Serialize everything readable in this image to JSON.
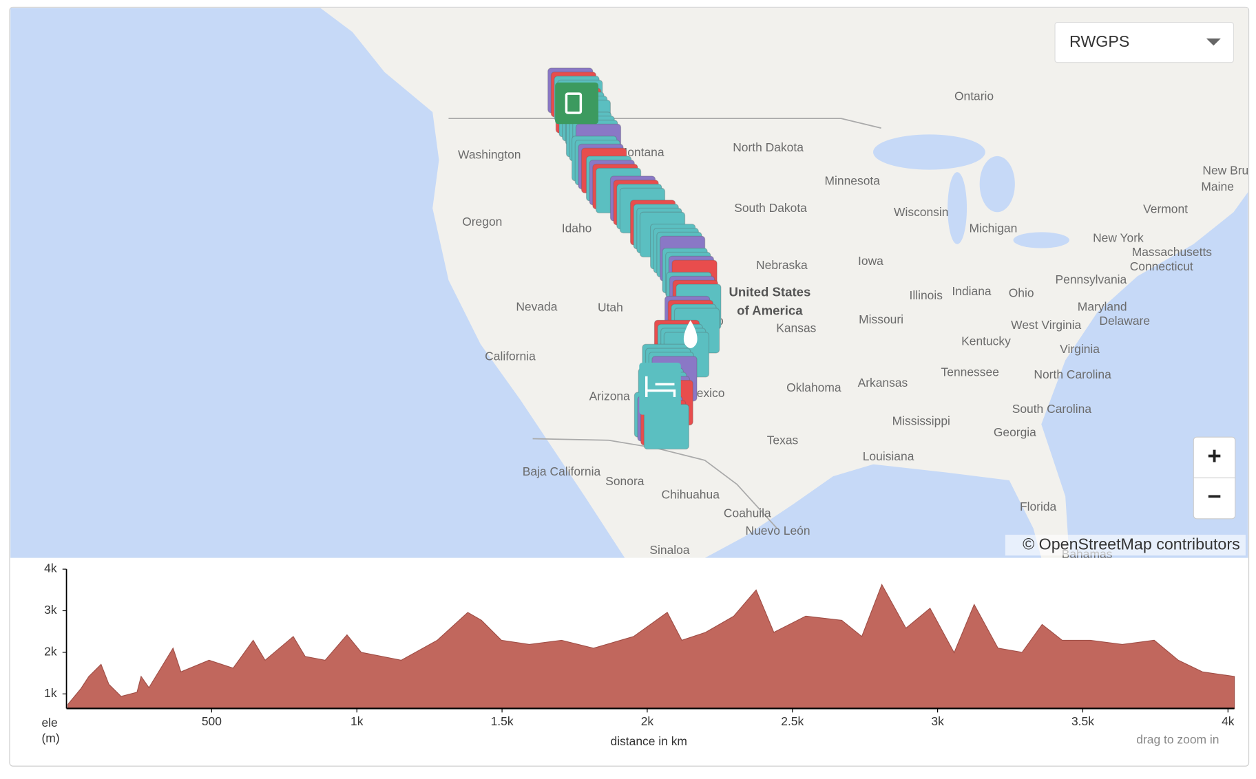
{
  "map": {
    "labels": [
      "Ontario",
      "Washington",
      "Montana",
      "North Dakota",
      "Minnesota",
      "New Bru",
      "Maine",
      "Vermont",
      "Wisconsin",
      "Michigan",
      "South Dakota",
      "Oregon",
      "Idaho",
      "Nebraska",
      "Iowa",
      "New York",
      "Massachusetts",
      "Connecticut",
      "Pennsylvania",
      "United States",
      "of America",
      "Illinois",
      "Indiana",
      "Ohio",
      "Nevada",
      "Utah",
      "do",
      "Kansas",
      "Missouri",
      "Maryland",
      "Delaware",
      "West Virginia",
      "Virginia",
      "Kentucky",
      "California",
      "Tennessee",
      "North Carolina",
      "Oklahoma",
      "Arkansas",
      "Arizona",
      "Mexico",
      "South Carolina",
      "Mississippi",
      "Georgia",
      "Texas",
      "Louisiana",
      "Baja California",
      "Sonora",
      "Chihuahua",
      "Coahuila",
      "Florida",
      "Nuevo León",
      "Sinaloa",
      "Bahamas"
    ],
    "layer_select": "RWGPS",
    "zoom_in": "+",
    "zoom_out": "−",
    "attribution": "© OpenStreetMap contributors"
  },
  "chart_data": {
    "type": "area",
    "ylabel": [
      "ele",
      "(m)"
    ],
    "xlabel": "distance in km",
    "hint": "drag to zoom in",
    "color": "#c1675d",
    "x": [
      5,
      50,
      77,
      119,
      146,
      188,
      243,
      257,
      284,
      367,
      394,
      491,
      574,
      643,
      684,
      781,
      822,
      891,
      966,
      1015,
      1153,
      1277,
      1382,
      1429,
      1498,
      1594,
      1705,
      1815,
      1953,
      2069,
      2119,
      2201,
      2298,
      2375,
      2436,
      2546,
      2670,
      2739,
      2808,
      2891,
      2974,
      3057,
      3126,
      3208,
      3291,
      3360,
      3429,
      3526,
      3636,
      3746,
      3829,
      3912,
      4022
    ],
    "values": [
      750,
      1130,
      1420,
      1710,
      1230,
      940,
      1040,
      1420,
      1150,
      2100,
      1530,
      1810,
      1620,
      2290,
      1810,
      2380,
      1900,
      1810,
      2420,
      2000,
      1810,
      2290,
      2960,
      2770,
      2290,
      2190,
      2290,
      2100,
      2380,
      2960,
      2290,
      2480,
      2870,
      3500,
      2480,
      2870,
      2770,
      2380,
      3630,
      2580,
      3060,
      1990,
      3150,
      2100,
      2000,
      2670,
      2290,
      2290,
      2190,
      2290,
      1810,
      1530,
      1420
    ],
    "xlim": [
      0,
      4022
    ],
    "ylim": [
      650,
      4000
    ],
    "xticks": [
      500,
      {
        "value": 1000,
        "label": "1k"
      },
      {
        "value": 1500,
        "label": "1.5k"
      },
      {
        "value": 2000,
        "label": "2k"
      },
      {
        "value": 2500,
        "label": "2.5k"
      },
      {
        "value": 3000,
        "label": "3k"
      },
      {
        "value": 3500,
        "label": "3.5k"
      },
      {
        "value": 4000,
        "label": "4k"
      }
    ],
    "yticks": [
      {
        "value": 1000,
        "label": "1k"
      },
      {
        "value": 2000,
        "label": "2k"
      },
      {
        "value": 3000,
        "label": "3k"
      },
      {
        "value": 4000,
        "label": "4k"
      }
    ]
  }
}
